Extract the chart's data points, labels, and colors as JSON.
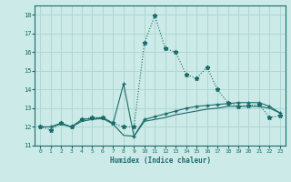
{
  "xlabel": "Humidex (Indice chaleur)",
  "background_color": "#cceae7",
  "grid_color": "#aad4d0",
  "line_color": "#1a6b6b",
  "xlim": [
    -0.5,
    23.5
  ],
  "ylim": [
    11,
    18.5
  ],
  "yticks": [
    11,
    12,
    13,
    14,
    15,
    16,
    17,
    18
  ],
  "xticks": [
    0,
    1,
    2,
    3,
    4,
    5,
    6,
    7,
    8,
    9,
    10,
    11,
    12,
    13,
    14,
    15,
    16,
    17,
    18,
    19,
    20,
    21,
    22,
    23
  ],
  "line1_x": [
    0,
    1,
    2,
    3,
    4,
    5,
    6,
    7,
    8,
    9,
    10,
    11,
    12,
    13,
    14,
    15,
    16,
    17,
    18,
    19,
    20,
    21,
    22,
    23
  ],
  "line1_y": [
    12.0,
    11.85,
    12.2,
    12.0,
    12.4,
    12.5,
    12.5,
    12.2,
    12.0,
    12.0,
    16.5,
    17.95,
    16.2,
    16.0,
    14.8,
    14.6,
    15.2,
    14.0,
    13.3,
    13.1,
    13.15,
    13.2,
    12.5,
    12.6
  ],
  "line2_x": [
    0,
    1,
    2,
    3,
    4,
    5,
    6,
    7,
    8,
    9,
    10,
    11,
    12,
    13,
    14,
    15,
    16,
    17,
    18,
    19,
    20,
    21,
    22,
    23
  ],
  "line2_y": [
    12.0,
    12.0,
    12.2,
    12.0,
    12.4,
    12.45,
    12.5,
    12.2,
    14.3,
    11.5,
    12.4,
    12.55,
    12.7,
    12.85,
    13.0,
    13.1,
    13.15,
    13.2,
    13.25,
    13.3,
    13.3,
    13.3,
    13.1,
    12.75
  ],
  "line3_x": [
    0,
    1,
    2,
    3,
    4,
    5,
    6,
    7,
    8,
    9,
    10,
    11,
    12,
    13,
    14,
    15,
    16,
    17,
    18,
    19,
    20,
    21,
    22,
    23
  ],
  "line3_y": [
    12.0,
    12.0,
    12.15,
    12.0,
    12.3,
    12.4,
    12.45,
    12.15,
    11.55,
    11.5,
    12.3,
    12.4,
    12.5,
    12.65,
    12.75,
    12.85,
    12.95,
    13.0,
    13.1,
    13.1,
    13.1,
    13.1,
    13.0,
    12.75
  ]
}
